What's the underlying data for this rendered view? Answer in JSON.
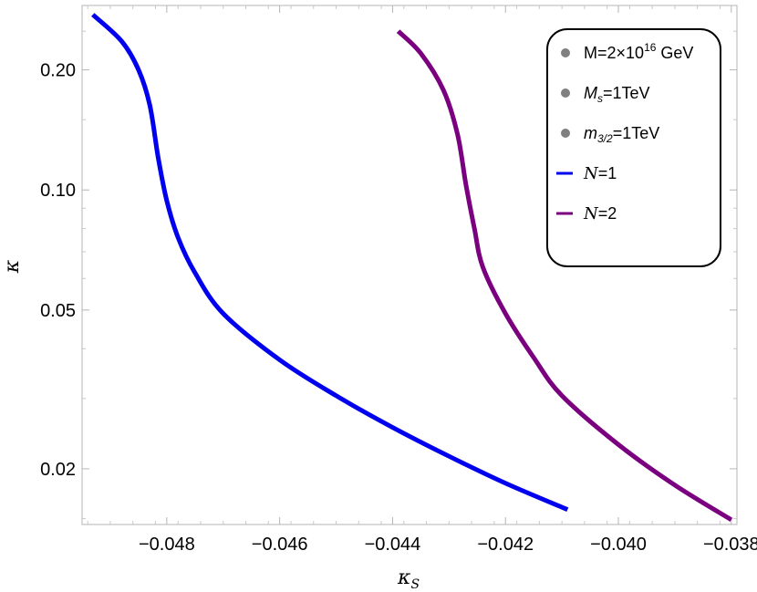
{
  "chart_data": {
    "type": "line",
    "x_axis": {
      "label_main": "κ",
      "label_sub": "S",
      "range": [
        -0.0495,
        -0.0379
      ],
      "ticks": [
        -0.048,
        -0.046,
        -0.044,
        -0.042,
        -0.04,
        -0.038
      ],
      "tick_labels": [
        "−0.048",
        "−0.046",
        "−0.044",
        "−0.042",
        "−0.040",
        "−0.038"
      ]
    },
    "y_axis": {
      "label": "κ",
      "scale": "log",
      "range": [
        0.0145,
        0.29
      ],
      "ticks": [
        0.02,
        0.05,
        0.1,
        0.2
      ],
      "tick_labels": [
        "0.02",
        "0.05",
        "0.10",
        "0.20"
      ]
    },
    "grid": false,
    "legend_position": "top-right",
    "legend_parameters": [
      {
        "main": "M=2×10",
        "sup": "16",
        "tail": " GeV"
      },
      {
        "main": "M",
        "sub": "s",
        "tail": "=1TeV"
      },
      {
        "main": "m",
        "sub": "3/2",
        "tail": "=1TeV"
      }
    ],
    "series": [
      {
        "name_main": "N",
        "name_tail": "=1",
        "color": "#0000ee",
        "points": [
          [
            -0.04931,
            0.275
          ],
          [
            -0.0488,
            0.236
          ],
          [
            -0.0485,
            0.2
          ],
          [
            -0.0483,
            0.163
          ],
          [
            -0.04815,
            0.12
          ],
          [
            -0.048,
            0.094
          ],
          [
            -0.0478,
            0.076
          ],
          [
            -0.0475,
            0.062
          ],
          [
            -0.047,
            0.049
          ],
          [
            -0.046,
            0.0375
          ],
          [
            -0.045,
            0.0305
          ],
          [
            -0.044,
            0.0254
          ],
          [
            -0.043,
            0.0215
          ],
          [
            -0.042,
            0.0184
          ],
          [
            -0.0409,
            0.0158
          ]
        ]
      },
      {
        "name_main": "N",
        "name_tail": "=2",
        "color": "#7a0080",
        "points": [
          [
            -0.0439,
            0.25
          ],
          [
            -0.0435,
            0.22
          ],
          [
            -0.0431,
            0.178
          ],
          [
            -0.04285,
            0.138
          ],
          [
            -0.0427,
            0.103
          ],
          [
            -0.04255,
            0.08
          ],
          [
            -0.0424,
            0.064
          ],
          [
            -0.042,
            0.049
          ],
          [
            -0.0415,
            0.038
          ],
          [
            -0.041,
            0.0305
          ],
          [
            -0.04,
            0.023
          ],
          [
            -0.039,
            0.0182
          ],
          [
            -0.038,
            0.0149
          ]
        ]
      }
    ]
  }
}
